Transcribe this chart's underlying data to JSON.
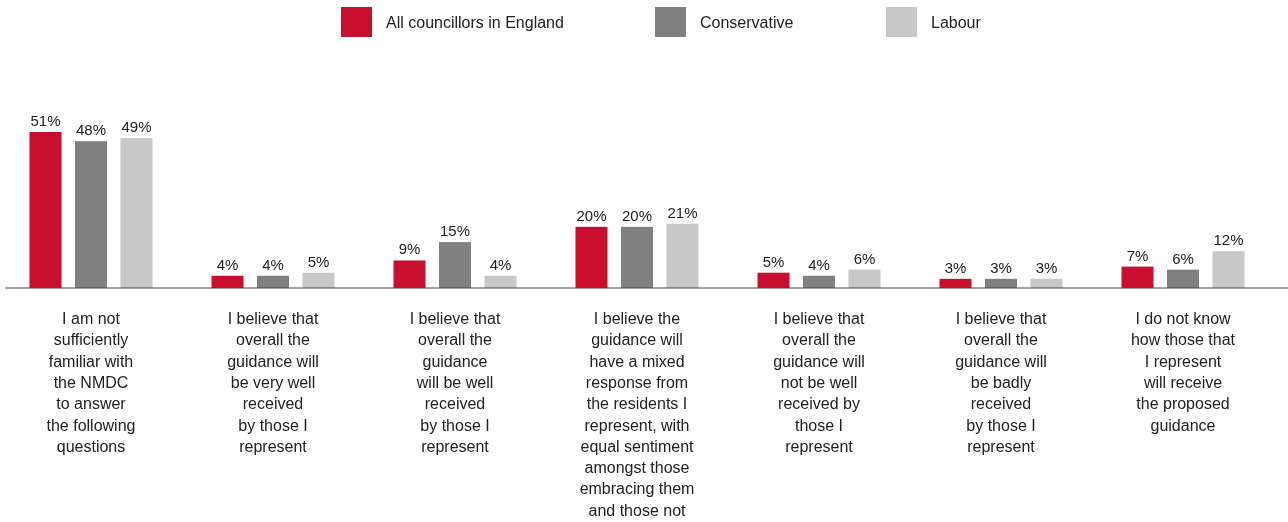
{
  "chart_data": {
    "type": "bar",
    "categories": [
      "I am not\nsufficiently\nfamiliar with\nthe NMDC\nto answer\nthe following\nquestions",
      "I believe that\noverall the\nguidance will\nbe very well\nreceived\nby those I\nrepresent",
      "I believe that\noverall the\nguidance\nwill be well\nreceived\nby those I\nrepresent",
      "I believe the\nguidance will\nhave a mixed\nresponse from\nthe residents I\nrepresent, with\nequal sentiment\namongst those\nembracing them\nand those not",
      "I believe that\noverall the\nguidance will\nnot be well\nreceived by\nthose I\nrepresent",
      "I believe that\noverall the\nguidance will\nbe badly\nreceived\nby those I\nrepresent",
      "I do not know\nhow those that\nI represent\nwill receive\nthe proposed\nguidance"
    ],
    "series": [
      {
        "name": "All councillors in England",
        "color": "#c8102e",
        "values": [
          51,
          4,
          9,
          20,
          5,
          3,
          7
        ],
        "value_labels": [
          "51%",
          "4%",
          "9%",
          "20%",
          "5%",
          "3%",
          "7%"
        ]
      },
      {
        "name": "Conservative",
        "color": "#808080",
        "values": [
          48,
          4,
          15,
          20,
          4,
          3,
          6
        ],
        "value_labels": [
          "48%",
          "4%",
          "15%",
          "20%",
          "4%",
          "3%",
          "6%"
        ]
      },
      {
        "name": "Labour",
        "color": "#c8c8c8",
        "values": [
          49,
          5,
          4,
          21,
          6,
          3,
          12
        ],
        "value_labels": [
          "49%",
          "5%",
          "4%",
          "21%",
          "6%",
          "3%",
          "12%"
        ]
      }
    ],
    "legend": "top"
  }
}
